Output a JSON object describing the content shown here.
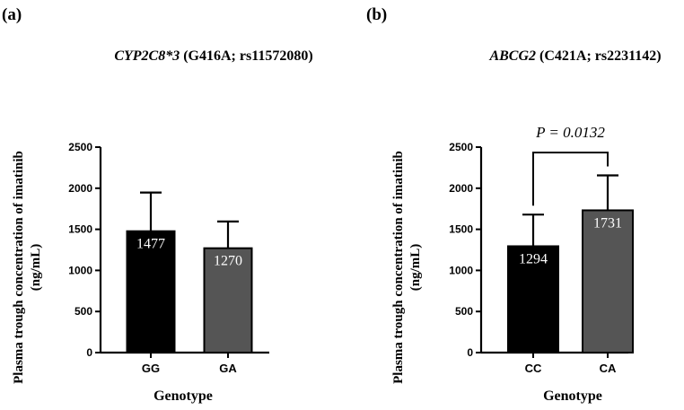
{
  "chart_data": [
    {
      "type": "bar",
      "panel": "(a)",
      "title_gene": "CYP2C8*3",
      "title_variant": " (G416A; rs11572080)",
      "ylabel_line1": "Plasma trough concentration of imatinib",
      "ylabel_line2": "(ng/mL)",
      "xlabel": "Genotype",
      "ylim": [
        0,
        2500
      ],
      "yticks": [
        0,
        500,
        1000,
        1500,
        2000,
        2500
      ],
      "categories": [
        "GG",
        "GA"
      ],
      "values": [
        1477,
        1270
      ],
      "errors": [
        470,
        325
      ],
      "bar_colors": [
        "#000000",
        "#555555"
      ],
      "data_labels": [
        "1477",
        "1270"
      ]
    },
    {
      "type": "bar",
      "panel": "(b)",
      "title_gene": "ABCG2",
      "title_variant": " (C421A; rs2231142)",
      "ylabel_line1": "Plasma trough concentration of imatinib",
      "ylabel_line2": "(ng/mL)",
      "xlabel": "Genotype",
      "ylim": [
        0,
        2500
      ],
      "yticks": [
        0,
        500,
        1000,
        1500,
        2000,
        2500
      ],
      "categories": [
        "CC",
        "CA"
      ],
      "values": [
        1294,
        1731
      ],
      "errors": [
        385,
        425
      ],
      "bar_colors": [
        "#000000",
        "#555555"
      ],
      "data_labels": [
        "1294",
        "1731"
      ],
      "annotation": "P = 0.0132"
    }
  ]
}
